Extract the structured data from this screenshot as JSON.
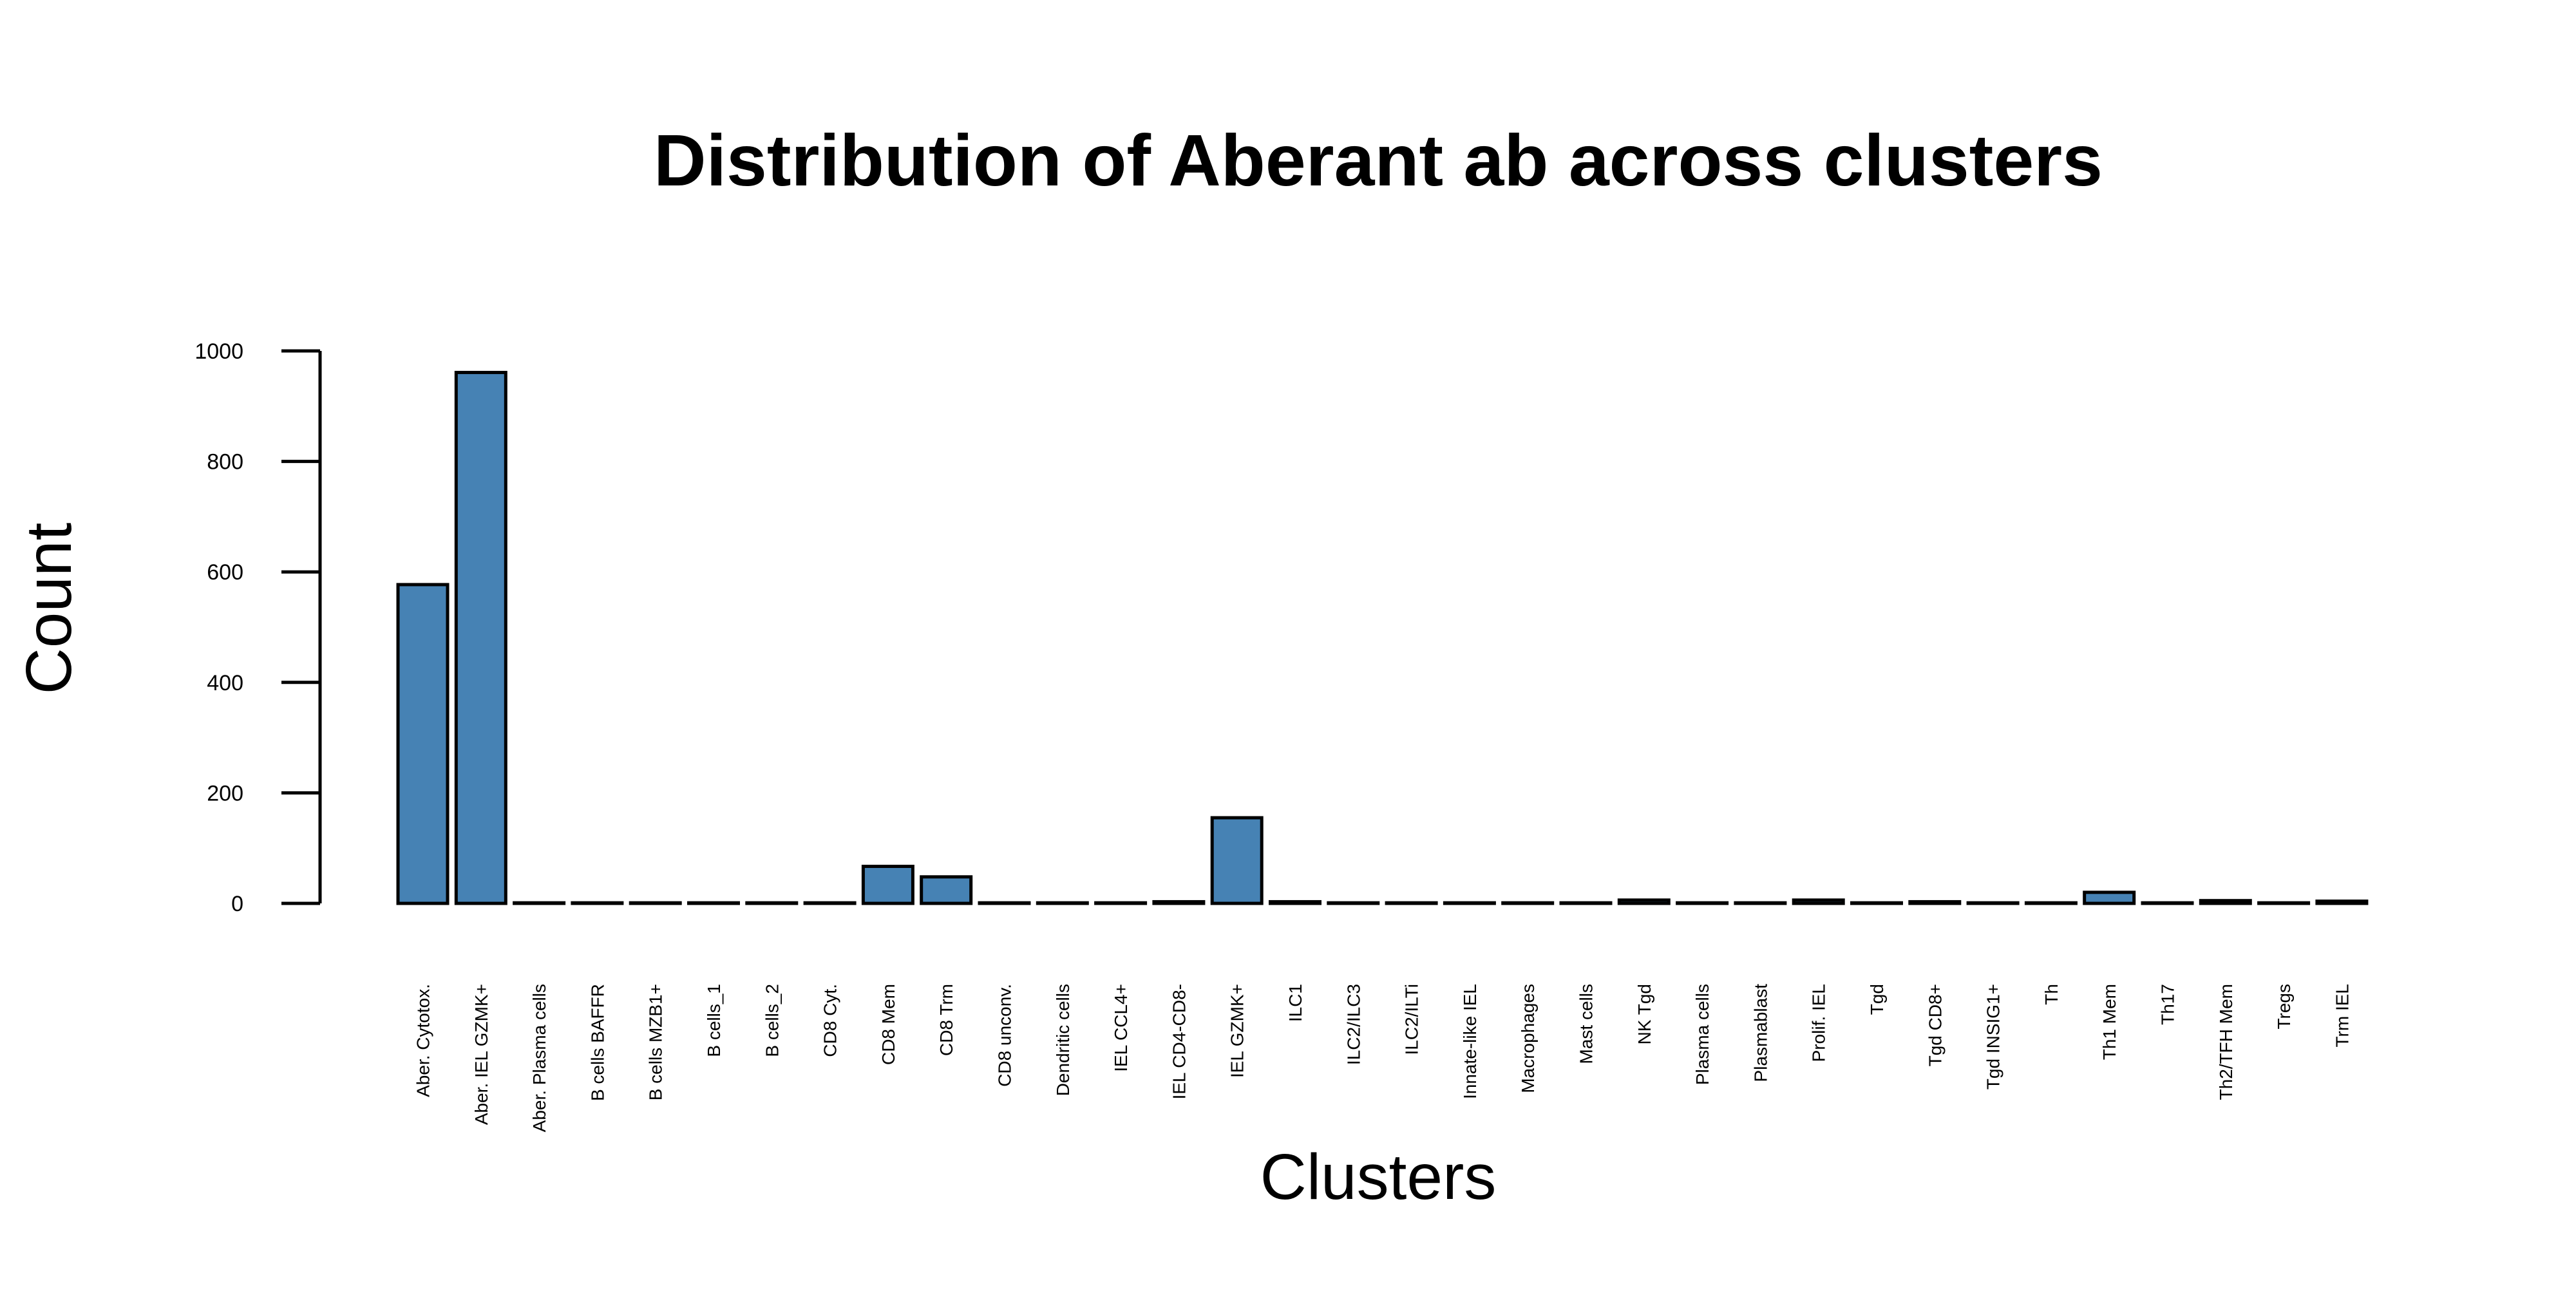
{
  "chart_data": {
    "type": "bar",
    "title": "Distribution of Aberant ab across clusters",
    "xlabel": "Clusters",
    "ylabel": "Count",
    "ylim": [
      0,
      1000
    ],
    "yticks": [
      0,
      200,
      400,
      600,
      800,
      1000
    ],
    "grid": false,
    "bar_color": "#4682B4",
    "bar_border_color": "#000000",
    "categories": [
      "Aber. Cytotox.",
      "Aber. IEL GZMK+",
      "Aber. Plasma cells",
      "B cells BAFFR",
      "B cells MZB1+",
      "B cells_1",
      "B cells_2",
      "CD8 Cyt.",
      "CD8 Mem",
      "CD8 Trm",
      "CD8 unconv.",
      "Dendritic cells",
      "IEL CCL4+",
      "IEL CD4-CD8-",
      "IEL GZMK+",
      "ILC1",
      "ILC2/ILC3",
      "ILC2/ILTi",
      "Innate-like IEL",
      "Macrophages",
      "Mast cells",
      "NK Tgd",
      "Plasma cells",
      "Plasmablast",
      "Prolif. IEL",
      "Tgd",
      "Tgd CD8+",
      "Tgd INSIG1+",
      "Th",
      "Th1 Mem",
      "Th17",
      "Th2/TFH Mem",
      "Tregs",
      "Trm IEL"
    ],
    "values": [
      577,
      961,
      1,
      1,
      1,
      1,
      1,
      1,
      67,
      48,
      1,
      1,
      1,
      3,
      155,
      3,
      1,
      1,
      1,
      1,
      1,
      6,
      1,
      1,
      6,
      1,
      3,
      1,
      1,
      20,
      1,
      5,
      1,
      4
    ]
  }
}
